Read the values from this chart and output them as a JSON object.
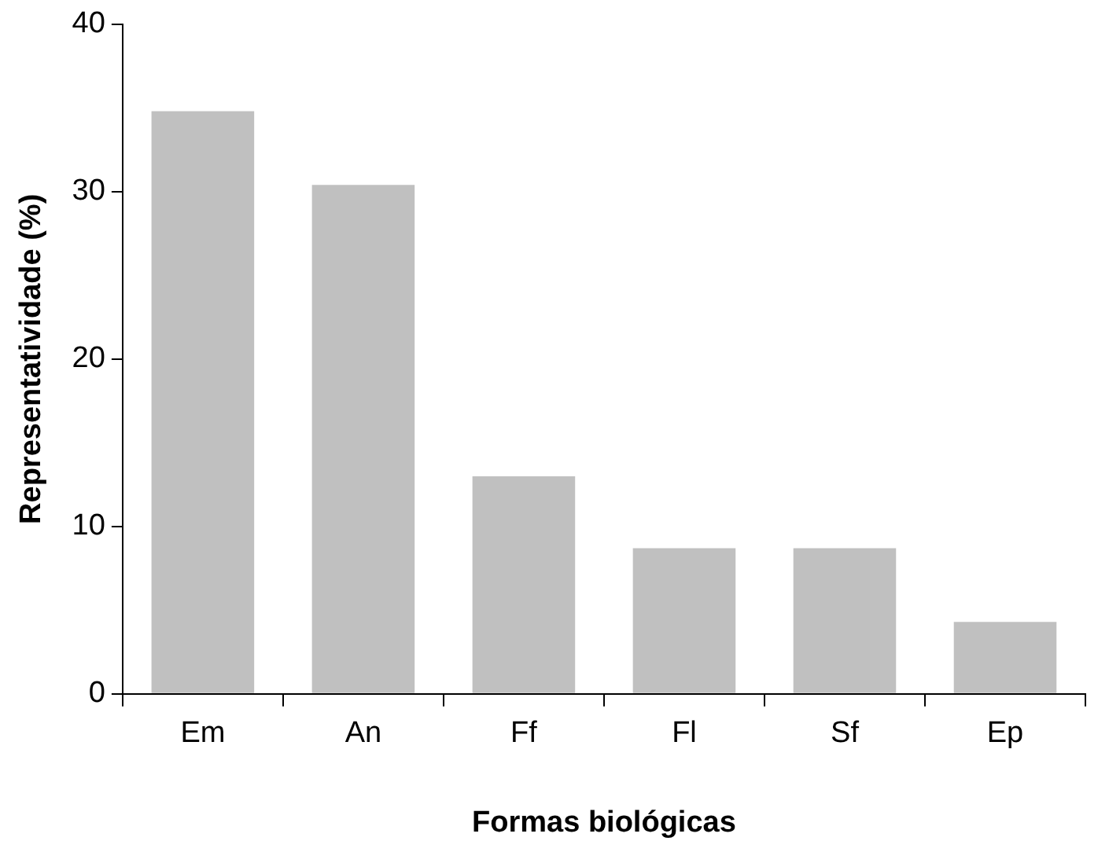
{
  "chart_data": {
    "type": "bar",
    "xlabel": "Formas biológicas",
    "ylabel": "Representatividade (%)",
    "categories": [
      "Em",
      "An",
      "Ff",
      "Fl",
      "Sf",
      "Ep"
    ],
    "values": [
      34.8,
      30.4,
      13.0,
      8.7,
      8.7,
      4.3
    ],
    "color": "#c0c0c0",
    "ylim": [
      0,
      40
    ],
    "yticks": [
      0,
      10,
      20,
      30,
      40
    ],
    "grid": false,
    "legend": false
  }
}
